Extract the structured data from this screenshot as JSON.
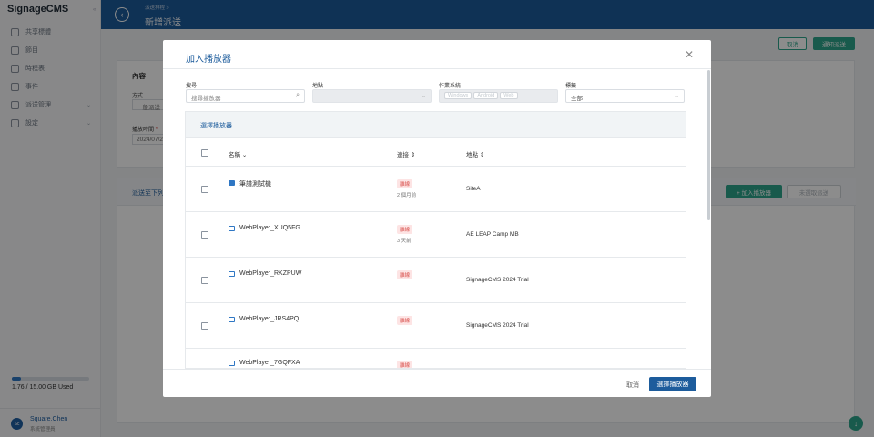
{
  "app": {
    "name": "SignageCMS"
  },
  "sidebar": {
    "items": [
      {
        "label": "共享標體",
        "icon": "folder-icon"
      },
      {
        "label": "節目",
        "icon": "program-icon"
      },
      {
        "label": "時程表",
        "icon": "calendar-icon"
      },
      {
        "label": "事件",
        "icon": "event-icon"
      },
      {
        "label": "派送管理",
        "icon": "send-icon"
      },
      {
        "label": "設定",
        "icon": "gear-icon"
      }
    ],
    "storage": {
      "text": "1.76 / 15.00 GB Used",
      "used": 1.76,
      "total": 15.0
    },
    "user": {
      "initials": "Sc",
      "name": "Square.Chen",
      "role": "系統管理員"
    }
  },
  "header": {
    "breadcrumb": "派送排程 >",
    "title": "新增派送"
  },
  "page": {
    "cancel": "取消",
    "notify": "通知派送",
    "content_title": "內容",
    "method_label": "方式",
    "method_value": "一般派送",
    "time_label": "播放時間",
    "required_mark": "*",
    "time_value": "2024/07/2",
    "send_to": "派送至下列",
    "add_player": "+ 加入播放器",
    "remove_send": "未選取派送"
  },
  "modal": {
    "title": "加入播放器",
    "close": "✕",
    "filters": {
      "search_label": "搜尋",
      "search_placeholder": "搜尋播放器",
      "location_label": "地點",
      "os_label": "作業系統",
      "os_chips": [
        "Windows",
        "Android",
        "Web"
      ],
      "tag_label": "標籤",
      "tag_value": "全部"
    },
    "table_title": "選擇播放器",
    "columns": {
      "name": "名稱",
      "connection": "連接",
      "location": "地點"
    },
    "rows": [
      {
        "name": "筆譜測試機",
        "icon": "windows-icon",
        "status": "離線",
        "time": "2 個月前",
        "location": "SiteA"
      },
      {
        "name": "WebPlayer_XUQ5FG",
        "icon": "web-player-icon",
        "status": "離線",
        "time": "3 天前",
        "location": "AE LEAP Camp MB"
      },
      {
        "name": "WebPlayer_RKZPUW",
        "icon": "web-player-icon",
        "status": "離線",
        "time": "",
        "location": "SignageCMS 2024 Trial"
      },
      {
        "name": "WebPlayer_JRS4PQ",
        "icon": "web-player-icon",
        "status": "離線",
        "time": "",
        "location": "SignageCMS 2024 Trial"
      },
      {
        "name": "WebPlayer_7GQFXA",
        "icon": "web-player-icon",
        "status": "離線",
        "time": "",
        "location": ""
      }
    ],
    "footer": {
      "cancel": "取消",
      "select": "選擇播放器"
    }
  }
}
